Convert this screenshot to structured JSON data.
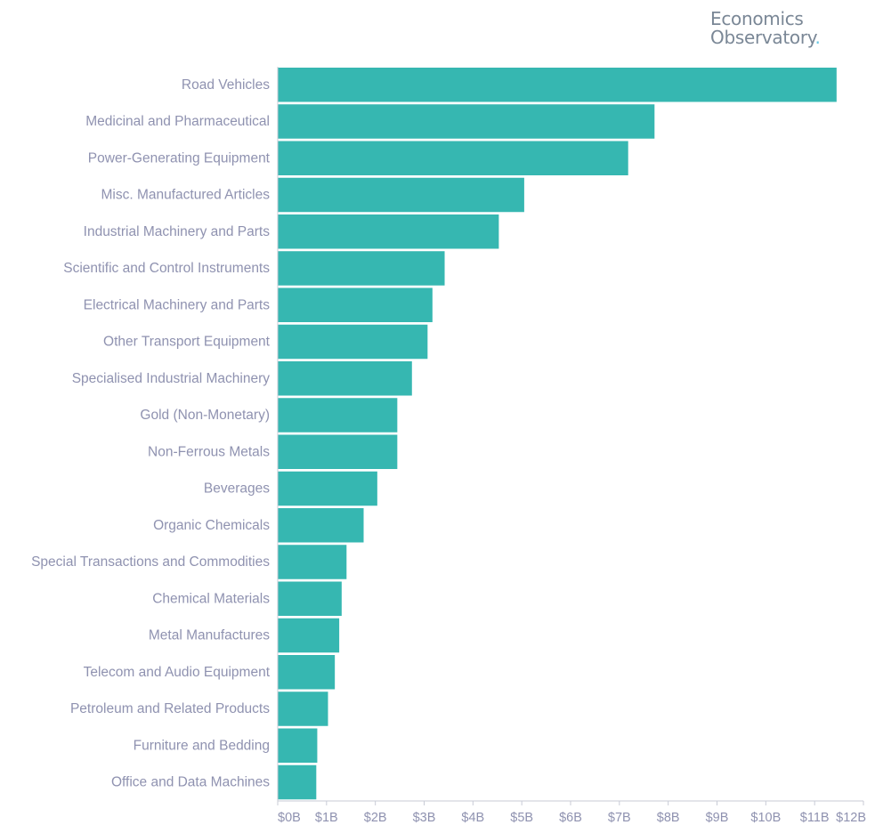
{
  "brand": {
    "line1": "Economics",
    "line2": "Observatory",
    "dot": "."
  },
  "chart_data": {
    "type": "bar",
    "orientation": "horizontal",
    "categories": [
      "Road Vehicles",
      "Medicinal and Pharmaceutical",
      "Power-Generating Equipment",
      "Misc. Manufactured Articles",
      "Industrial Machinery and Parts",
      "Scientific and Control Instruments",
      "Electrical Machinery and Parts",
      "Other Transport Equipment",
      "Specialised Industrial Machinery",
      "Gold (Non-Monetary)",
      "Non-Ferrous Metals",
      "Beverages",
      "Organic Chemicals",
      "Special Transactions and Commodities",
      "Chemical Materials",
      "Metal Manufactures",
      "Telecom and Audio Equipment",
      "Petroleum and Related Products",
      "Furniture and Bedding",
      "Office and Data Machines"
    ],
    "values": [
      11.45,
      7.72,
      7.18,
      5.05,
      4.53,
      3.42,
      3.17,
      3.07,
      2.75,
      2.45,
      2.45,
      2.04,
      1.76,
      1.41,
      1.31,
      1.26,
      1.17,
      1.03,
      0.81,
      0.79
    ],
    "unit": "$ billions",
    "xlim": [
      0,
      12
    ],
    "xticks": [
      0,
      1,
      2,
      3,
      4,
      5,
      6,
      7,
      8,
      9,
      10,
      11,
      12
    ],
    "xtick_labels": [
      "$0B",
      "$1B",
      "$2B",
      "$3B",
      "$4B",
      "$5B",
      "$6B",
      "$7B",
      "$8B",
      "$9B",
      "$10B",
      "$11B",
      "$12B"
    ],
    "bar_color": "#36b7b1",
    "axis_color": "#c8cbd6",
    "label_color": "#8f92b0",
    "grid": false,
    "legend": "none",
    "title": "",
    "xlabel": "",
    "ylabel": ""
  }
}
